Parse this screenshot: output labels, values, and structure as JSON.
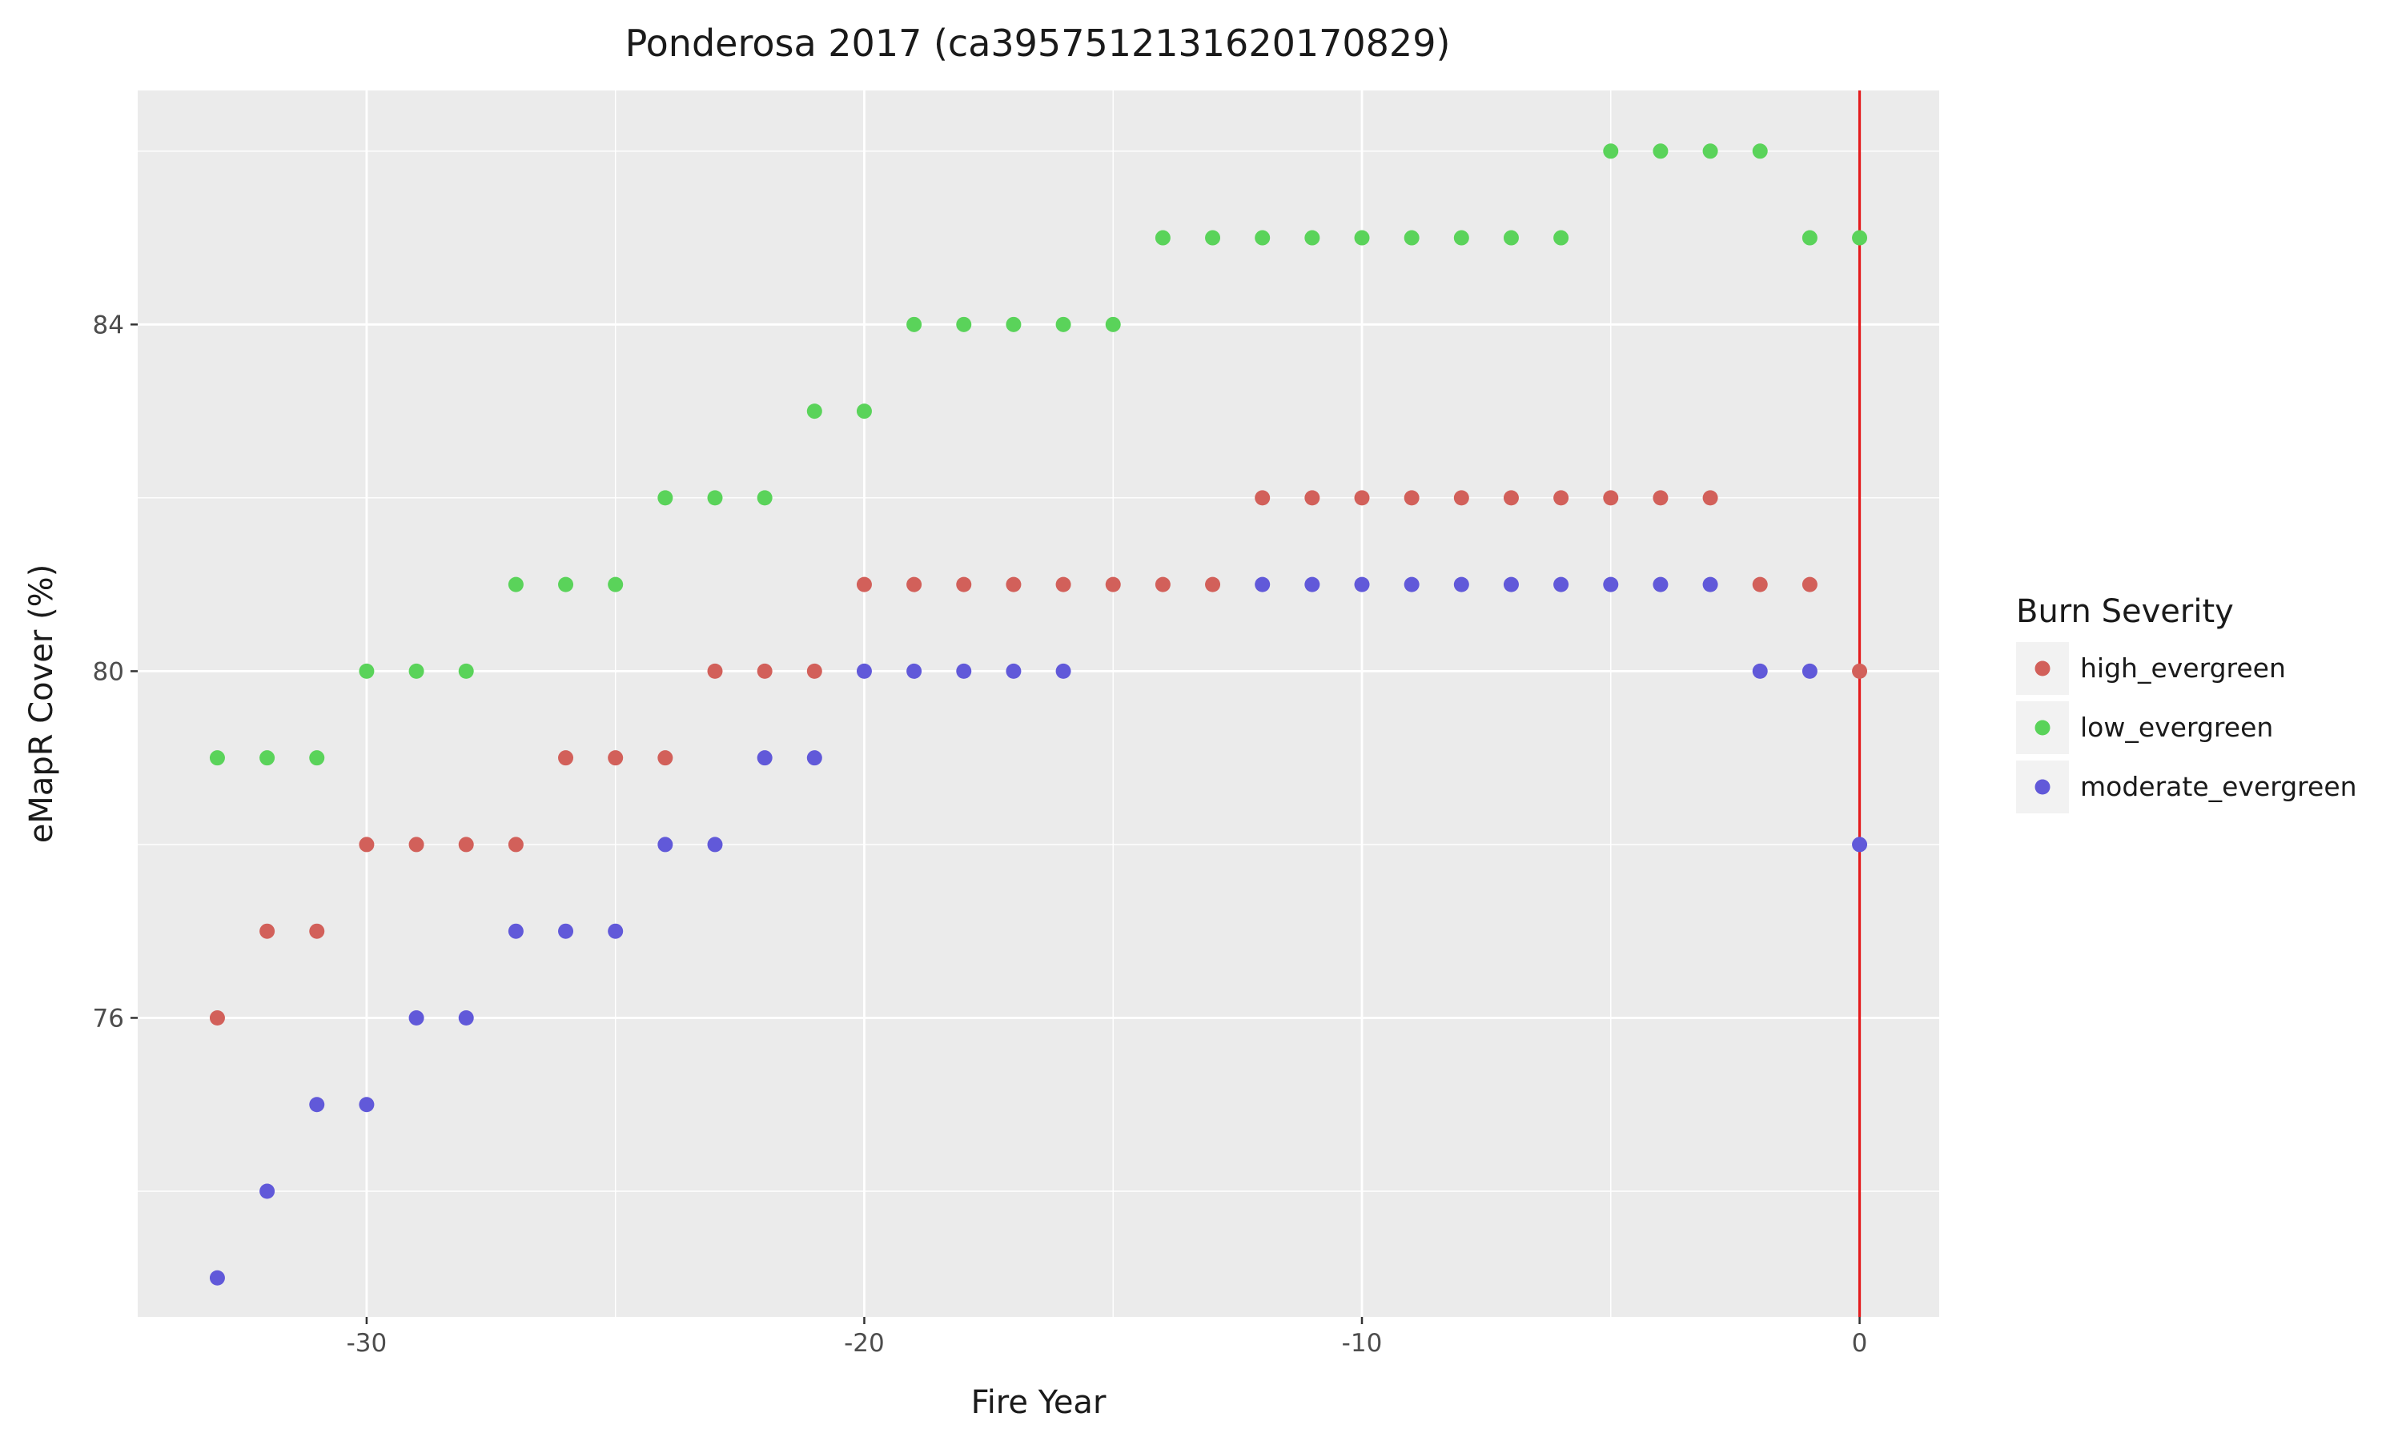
{
  "chart_data": {
    "type": "scatter",
    "title": "Ponderosa 2017 (ca3957512131620170829)",
    "xlabel": "Fire Year",
    "ylabel": "eMapR Cover (%)",
    "xlim": [
      -34.6,
      1.6
    ],
    "ylim": [
      72.55,
      86.7
    ],
    "x_ticks": [
      -30,
      -20,
      -10,
      0
    ],
    "y_ticks": [
      76,
      80,
      84
    ],
    "grid": true,
    "legend": {
      "title": "Burn Severity",
      "placement": "right"
    },
    "reference_line": {
      "x": 0,
      "color": "#e41a1c"
    },
    "series": [
      {
        "name": "high_evergreen",
        "color": "#d2605a",
        "x": [
          -33,
          -32,
          -31,
          -30,
          -29,
          -28,
          -27,
          -26,
          -25,
          -24,
          -23,
          -22,
          -21,
          -20,
          -19,
          -18,
          -17,
          -16,
          -15,
          -14,
          -13,
          -12,
          -11,
          -10,
          -9,
          -8,
          -7,
          -6,
          -5,
          -4,
          -3,
          -2,
          -1,
          0
        ],
        "y": [
          76,
          77,
          77,
          78,
          78,
          78,
          78,
          79,
          79,
          79,
          80,
          80,
          80,
          81,
          81,
          81,
          81,
          81,
          81,
          81,
          81,
          82,
          82,
          82,
          82,
          82,
          82,
          82,
          82,
          82,
          82,
          81,
          81,
          80
        ]
      },
      {
        "name": "low_evergreen",
        "color": "#5ad35a",
        "x": [
          -33,
          -32,
          -31,
          -30,
          -29,
          -28,
          -27,
          -26,
          -25,
          -24,
          -23,
          -22,
          -21,
          -20,
          -19,
          -18,
          -17,
          -16,
          -15,
          -14,
          -13,
          -12,
          -11,
          -10,
          -9,
          -8,
          -7,
          -6,
          -5,
          -4,
          -3,
          -2,
          -1,
          0
        ],
        "y": [
          79,
          79,
          79,
          80,
          80,
          80,
          81,
          81,
          81,
          82,
          82,
          82,
          83,
          83,
          84,
          84,
          84,
          84,
          84,
          85,
          85,
          85,
          85,
          85,
          85,
          85,
          85,
          85,
          86,
          86,
          86,
          86,
          85,
          85
        ]
      },
      {
        "name": "moderate_evergreen",
        "color": "#6159d9",
        "x": [
          -33,
          -32,
          -31,
          -30,
          -29,
          -28,
          -27,
          -26,
          -25,
          -24,
          -23,
          -22,
          -21,
          -20,
          -19,
          -18,
          -17,
          -16,
          -12,
          -11,
          -10,
          -9,
          -8,
          -7,
          -6,
          -5,
          -4,
          -3,
          -2,
          -1,
          0
        ],
        "y": [
          73,
          74,
          75,
          75,
          76,
          76,
          77,
          77,
          77,
          78,
          78,
          79,
          79,
          80,
          80,
          80,
          80,
          80,
          81,
          81,
          81,
          81,
          81,
          81,
          81,
          81,
          81,
          81,
          80,
          80,
          78
        ]
      }
    ]
  }
}
